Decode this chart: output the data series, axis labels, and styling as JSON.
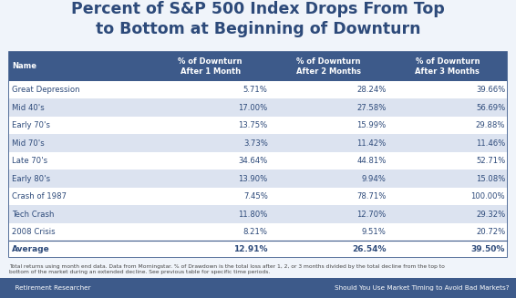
{
  "title_line1": "Percent of S&P 500 Index Drops From Top",
  "title_line2": "to Bottom at Beginning of Downturn",
  "title_color": "#2d4a7a",
  "header_bg": "#3d5a8a",
  "header_text_color": "#ffffff",
  "col_headers_line1": [
    "Name",
    "% of Downturn",
    "% of Downturn",
    "% of Downturn"
  ],
  "col_headers_line2": [
    "",
    "After 1 Month",
    "After 2 Months",
    "After 3 Months"
  ],
  "rows": [
    [
      "Great Depression",
      "5.71%",
      "28.24%",
      "39.66%"
    ],
    [
      "Mid 40's",
      "17.00%",
      "27.58%",
      "56.69%"
    ],
    [
      "Early 70's",
      "13.75%",
      "15.99%",
      "29.88%"
    ],
    [
      "Mid 70's",
      "3.73%",
      "11.42%",
      "11.46%"
    ],
    [
      "Late 70's",
      "34.64%",
      "44.81%",
      "52.71%"
    ],
    [
      "Early 80's",
      "13.90%",
      "9.94%",
      "15.08%"
    ],
    [
      "Crash of 1987",
      "7.45%",
      "78.71%",
      "100.00%"
    ],
    [
      "Tech Crash",
      "11.80%",
      "12.70%",
      "29.32%"
    ],
    [
      "2008 Crisis",
      "8.21%",
      "9.51%",
      "20.72%"
    ]
  ],
  "avg_row": [
    "Average",
    "12.91%",
    "26.54%",
    "39.50%"
  ],
  "row_colors": [
    "#ffffff",
    "#dce3f0"
  ],
  "avg_bg": "#ffffff",
  "table_border_color": "#3d5a8a",
  "data_text_color": "#2d4a7a",
  "footer_text": "Total returns using month end data. Data from Morningstar. % of Drawdown is the total loss after 1, 2, or 3 months divided by the total decline from the top to\nbottom of the market during an extended decline. See previous table for specific time periods.",
  "footer_bar_color": "#3d5a8a",
  "footer_bar_text_left": "  Retirement Researcher",
  "footer_bar_text_right": "Should You Use Market Timing to Avoid Bad Markets?",
  "bg_color": "#f0f4fa"
}
